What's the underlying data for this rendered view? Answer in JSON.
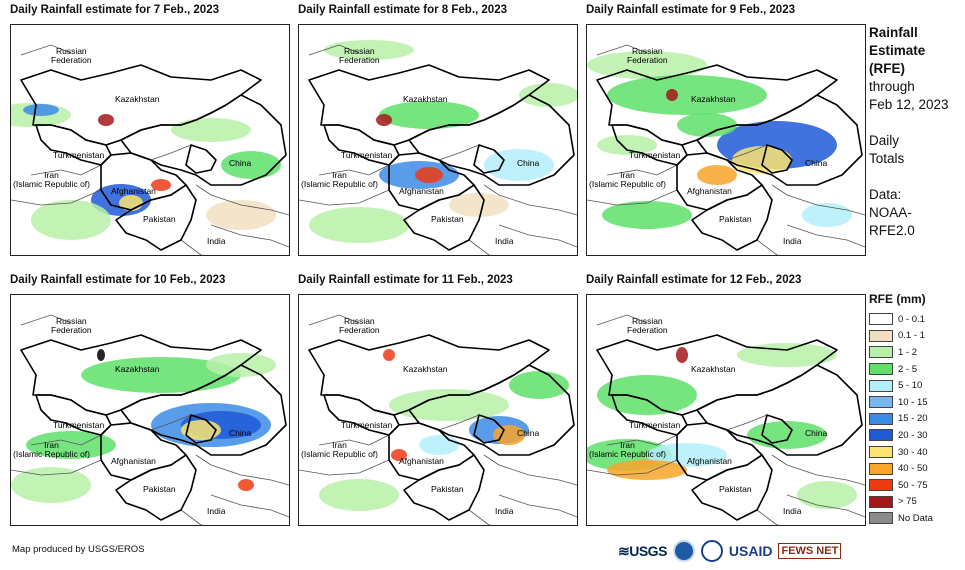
{
  "panels": [
    {
      "title": "Daily Rainfall estimate for 7 Feb., 2023",
      "labels": {
        "russia": "Russian\nFederation",
        "kazakhstan": "Kazakhstan",
        "turkmenistan": "Turkmenistan",
        "iran": "Iran\n(Islamic Republic of)",
        "afghanistan": "Afghanistan",
        "pakistan": "Pakistan",
        "china": "China",
        "india": "India"
      }
    },
    {
      "title": "Daily Rainfall estimate for 8 Feb., 2023",
      "labels": {
        "russia": "Russian\nFederation",
        "kazakhstan": "Kazakhstan",
        "turkmenistan": "Turkmenistan",
        "iran": "Iran\n(Islamic Republic of)",
        "afghanistan": "Afghanistan",
        "pakistan": "Pakistan",
        "china": "China",
        "india": "India"
      }
    },
    {
      "title": "Daily Rainfall estimate for 9 Feb., 2023",
      "labels": {
        "russia": "Russian\nFederation",
        "kazakhstan": "Kazakhstan",
        "turkmenistan": "Turkmenistan",
        "iran": "Iran\n(Islamic Republic of)",
        "afghanistan": "Afghanistan",
        "pakistan": "Pakistan",
        "china": "China",
        "india": "India"
      }
    },
    {
      "title": "Daily Rainfall estimate for 10 Feb., 2023",
      "labels": {
        "russia": "Russian\nFederation",
        "kazakhstan": "Kazakhstan",
        "turkmenistan": "Turkmenistan",
        "iran": "Iran\n(Islamic Republic of)",
        "afghanistan": "Afghanistan",
        "pakistan": "Pakistan",
        "china": "China",
        "india": "India"
      }
    },
    {
      "title": "Daily Rainfall estimate for 11 Feb., 2023",
      "labels": {
        "russia": "Russian\nFederation",
        "kazakhstan": "Kazakhstan",
        "turkmenistan": "Turkmenistan",
        "iran": "Iran\n(Islamic Republic of)",
        "afghanistan": "Afghanistan",
        "pakistan": "Pakistan",
        "china": "China",
        "india": "India"
      }
    },
    {
      "title": "Daily Rainfall estimate for 12 Feb., 2023",
      "labels": {
        "russia": "Russian\nFederation",
        "kazakhstan": "Kazakhstan",
        "turkmenistan": "Turkmenistan",
        "iran": "Iran\n(Islamic Republic of)",
        "afghanistan": "Afghanistan",
        "pakistan": "Pakistan",
        "china": "China",
        "india": "India"
      }
    }
  ],
  "side": {
    "title_lines": [
      "Rainfall",
      "Estimate",
      "(RFE)"
    ],
    "through": [
      "through",
      "Feb 12, 2023"
    ],
    "daily": [
      "Daily",
      "Totals"
    ],
    "source": [
      "Data:",
      "NOAA-",
      "RFE2.0"
    ]
  },
  "legend": {
    "title": "RFE (mm)",
    "items": [
      {
        "label": "0 - 0.1",
        "color": "#ffffff"
      },
      {
        "label": "0.1 - 1",
        "color": "#f2dfc0"
      },
      {
        "label": "1 - 2",
        "color": "#b8f0a8"
      },
      {
        "label": "2 - 5",
        "color": "#5ee06a"
      },
      {
        "label": "5 - 10",
        "color": "#b3eefa"
      },
      {
        "label": "10 - 15",
        "color": "#78b6f0"
      },
      {
        "label": "15 - 20",
        "color": "#3c8be6"
      },
      {
        "label": "20 - 30",
        "color": "#1f5ad8"
      },
      {
        "label": "30 - 40",
        "color": "#fbe472"
      },
      {
        "label": "40 - 50",
        "color": "#f8a52a"
      },
      {
        "label": "50 - 75",
        "color": "#ee3b14"
      },
      {
        "label": "> 75",
        "color": "#a4161a"
      },
      {
        "label": "No Data",
        "color": "#8a8a8a"
      }
    ]
  },
  "footer": "Map produced by USGS/EROS",
  "logos": {
    "usgs": "≋USGS",
    "usaid": "USAID",
    "fews": "FEWS NET"
  }
}
